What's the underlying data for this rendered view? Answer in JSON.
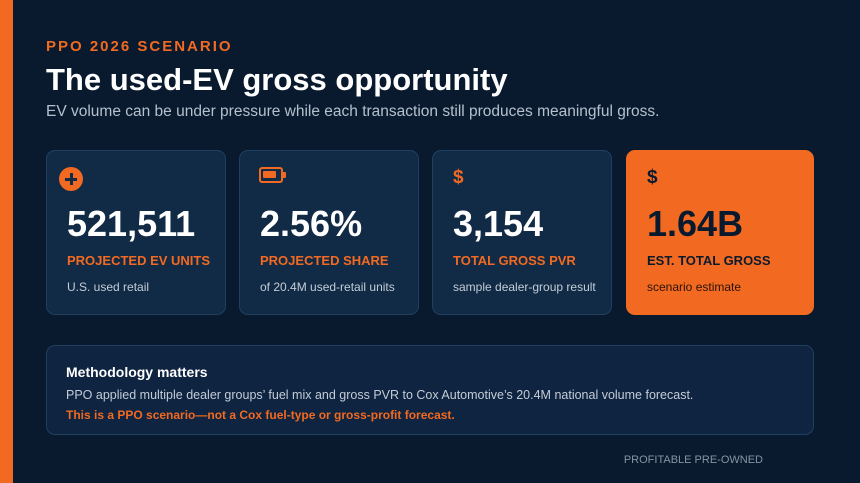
{
  "header": {
    "eyebrow": "PPO 2026 SCENARIO",
    "title": "The used-EV gross opportunity",
    "subtitle": "EV volume can be under pressure while each transaction still produces meaningful gross."
  },
  "cards": [
    {
      "icon": "plus-circle-icon",
      "value": "521,511",
      "label": "PROJECTED EV UNITS",
      "sub": "U.S. used retail"
    },
    {
      "icon": "battery-icon",
      "value": "2.56%",
      "label": "PROJECTED SHARE",
      "sub": "of 20.4M used-retail units"
    },
    {
      "icon": "dollar-icon",
      "icon_glyph": "$",
      "value": "3,154",
      "label": "TOTAL GROSS PVR",
      "sub": "sample dealer-group result"
    },
    {
      "icon": "dollar-icon",
      "icon_glyph": "$",
      "value": "1.64B",
      "label": "EST. TOTAL GROSS",
      "sub": "scenario estimate"
    }
  ],
  "methodology": {
    "title": "Methodology matters",
    "body": "PPO applied multiple dealer groups’ fuel mix and gross PVR to Cox Automotive’s 20.4M national volume forecast.",
    "warning": "This is a PPO scenario—not a Cox fuel-type or gross-profit forecast."
  },
  "footer": "PROFITABLE PRE-OWNED",
  "colors": {
    "background": "#0a1a2e",
    "accent": "#f26a21",
    "card": "#112b46"
  }
}
